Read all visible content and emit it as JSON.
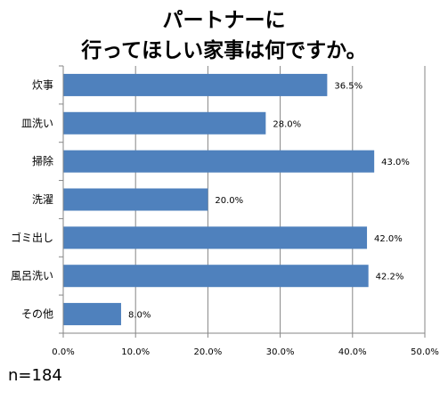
{
  "chart_data": {
    "type": "bar",
    "orientation": "horizontal",
    "title_lines": [
      "パートナーに",
      "行ってほしい家事は何ですか。"
    ],
    "categories": [
      "炊事",
      "皿洗い",
      "掃除",
      "洗濯",
      "ゴミ出し",
      "風呂洗い",
      "その他"
    ],
    "values": [
      36.5,
      28.0,
      43.0,
      20.0,
      42.0,
      42.2,
      8.0
    ],
    "data_labels": [
      "36.5%",
      "28.0%",
      "43.0%",
      "20.0%",
      "42.0%",
      "42.2%",
      "8.0%"
    ],
    "xlim": [
      0,
      50
    ],
    "x_ticks": [
      0,
      10,
      20,
      30,
      40,
      50
    ],
    "x_tick_labels": [
      "0.0%",
      "10.0%",
      "20.0%",
      "30.0%",
      "40.0%",
      "50.0%"
    ],
    "grid": "vertical",
    "legend": "none",
    "bar_color": "#4F81BD"
  },
  "footnote": "n=184"
}
